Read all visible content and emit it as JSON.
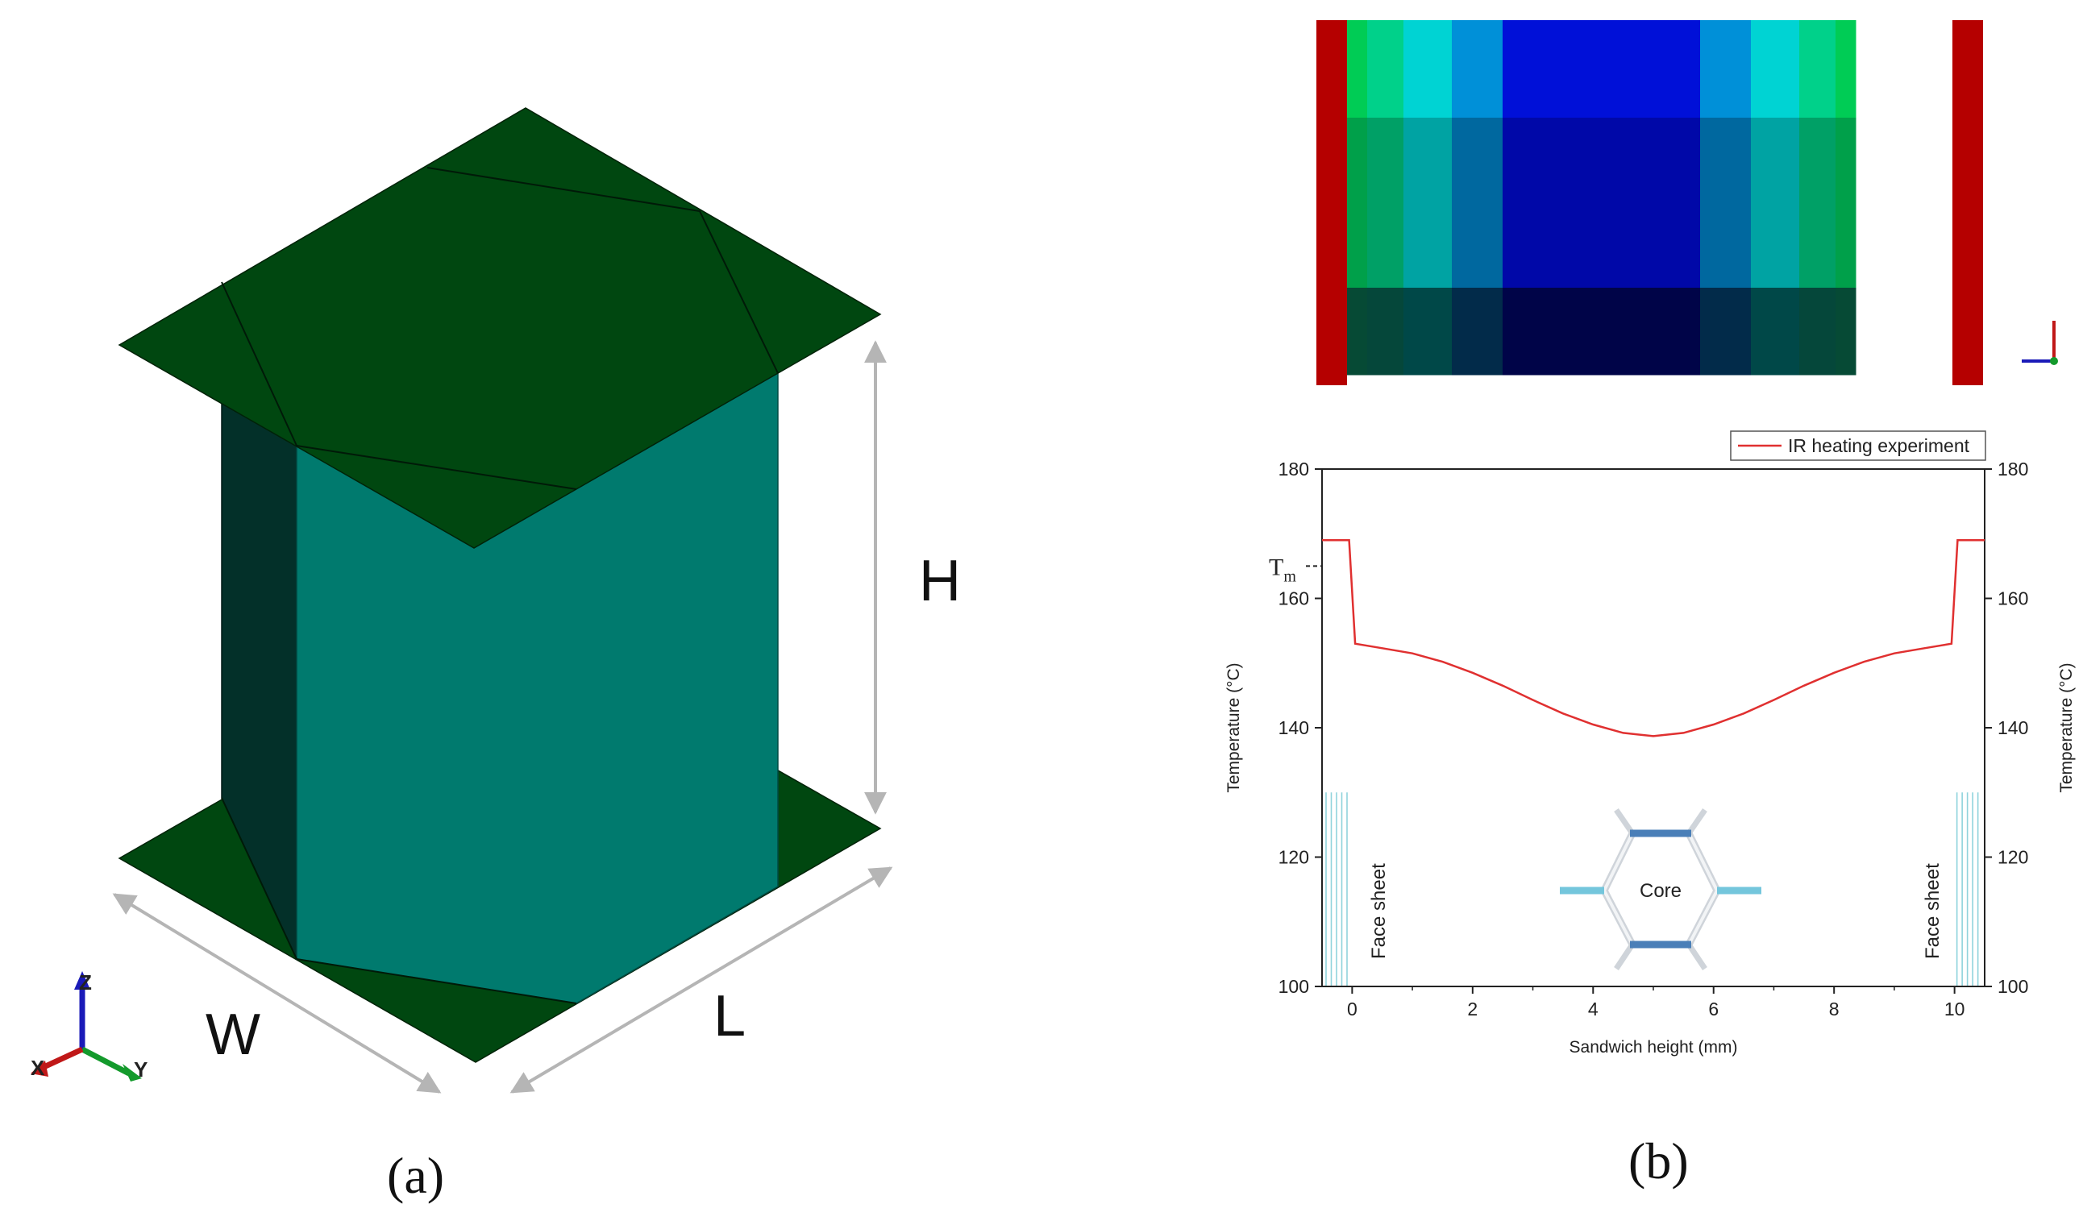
{
  "panel_a": {
    "label": "(a)",
    "dims": {
      "width": "W",
      "length": "L",
      "height": "H"
    },
    "triad": {
      "x": "X",
      "y": "Y",
      "z": "Z"
    },
    "colors": {
      "face_sheet": "#004710",
      "core_front": "#007a6e",
      "core_side": "#033029"
    }
  },
  "panel_b": {
    "label": "(b)",
    "contour": {
      "columns": [
        [
          "#00cc55",
          "#00a04a",
          "#064a35"
        ],
        [
          "#00d18a",
          "#00a066",
          "#05473a"
        ],
        [
          "#00d3d3",
          "#00a3a3",
          "#004848"
        ],
        [
          "#0090d8",
          "#00689f",
          "#022b4a"
        ],
        [
          "#0010d8",
          "#0008a8",
          "#000448"
        ],
        [
          "#0090d8",
          "#00689f",
          "#022b4a"
        ],
        [
          "#00d3d3",
          "#00a3a3",
          "#004848"
        ],
        [
          "#00d18a",
          "#00a066",
          "#05473a"
        ],
        [
          "#00cc55",
          "#00a04a",
          "#064a35"
        ]
      ],
      "edge_color": "#b50000"
    }
  },
  "chart_data": {
    "type": "line",
    "xlabel": "Sandwich height (mm)",
    "ylabel": "Temperature (°C)",
    "ylabel_right": "Temperature (°C)",
    "xlim": [
      -0.5,
      10.5
    ],
    "ylim": [
      100,
      180
    ],
    "x_ticks": [
      0,
      2,
      4,
      6,
      8,
      10
    ],
    "y_ticks": [
      100,
      120,
      140,
      160,
      180
    ],
    "legend": {
      "placement": "top-right"
    },
    "series": [
      {
        "name": "IR heating experiment",
        "color": "#e03030",
        "points": [
          [
            -0.5,
            169
          ],
          [
            -0.05,
            169
          ],
          [
            0.05,
            153
          ],
          [
            0.5,
            152.3
          ],
          [
            1.0,
            151.5
          ],
          [
            1.5,
            150.2
          ],
          [
            2.0,
            148.5
          ],
          [
            2.5,
            146.5
          ],
          [
            3.0,
            144.3
          ],
          [
            3.5,
            142.2
          ],
          [
            4.0,
            140.5
          ],
          [
            4.5,
            139.2
          ],
          [
            5.0,
            138.7
          ],
          [
            5.5,
            139.2
          ],
          [
            6.0,
            140.5
          ],
          [
            6.5,
            142.2
          ],
          [
            7.0,
            144.3
          ],
          [
            7.5,
            146.5
          ],
          [
            8.0,
            148.5
          ],
          [
            8.5,
            150.2
          ],
          [
            9.0,
            151.5
          ],
          [
            9.5,
            152.3
          ],
          [
            9.95,
            153
          ],
          [
            10.05,
            169
          ],
          [
            10.5,
            169
          ]
        ]
      }
    ],
    "annotations": {
      "tm": "T",
      "tm_sub": "m",
      "tm_value": 165,
      "face_sheet_left": "Face sheet",
      "face_sheet_right": "Face sheet",
      "core": "Core"
    }
  }
}
